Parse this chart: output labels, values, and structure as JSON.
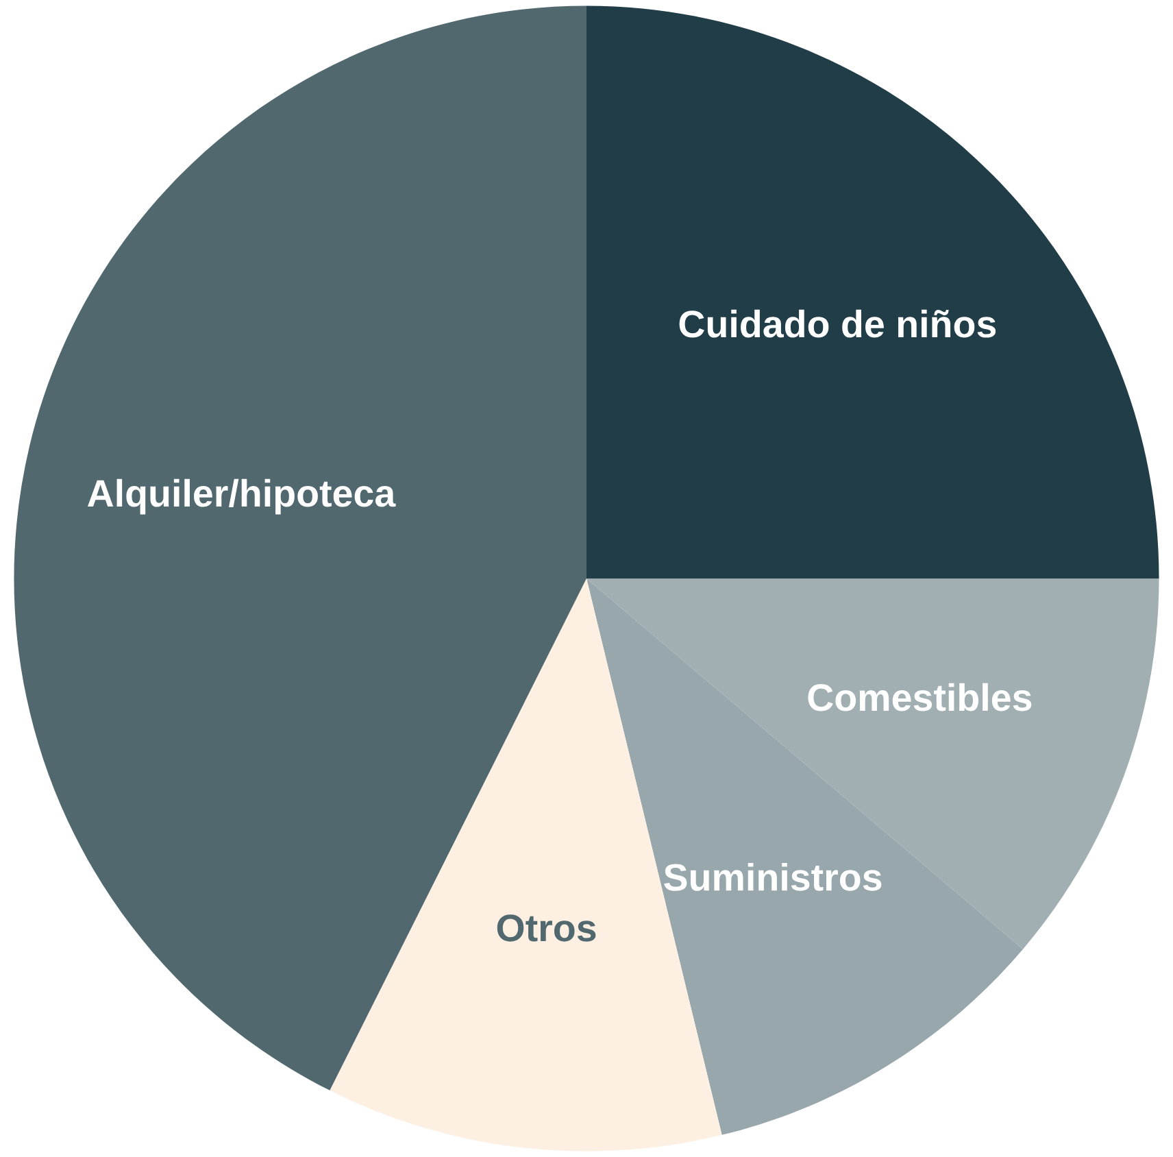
{
  "chart_data": {
    "type": "pie",
    "categories": [
      "Cuidado de niños",
      "Comestibles",
      "Suministros",
      "Otros",
      "Alquiler/hipoteca"
    ],
    "values": [
      25,
      11.2,
      10,
      11.2,
      42.6
    ],
    "colors": [
      "#213d48",
      "#a2afb2",
      "#98a7ab",
      "#fdf0e2",
      "#51686f"
    ]
  }
}
